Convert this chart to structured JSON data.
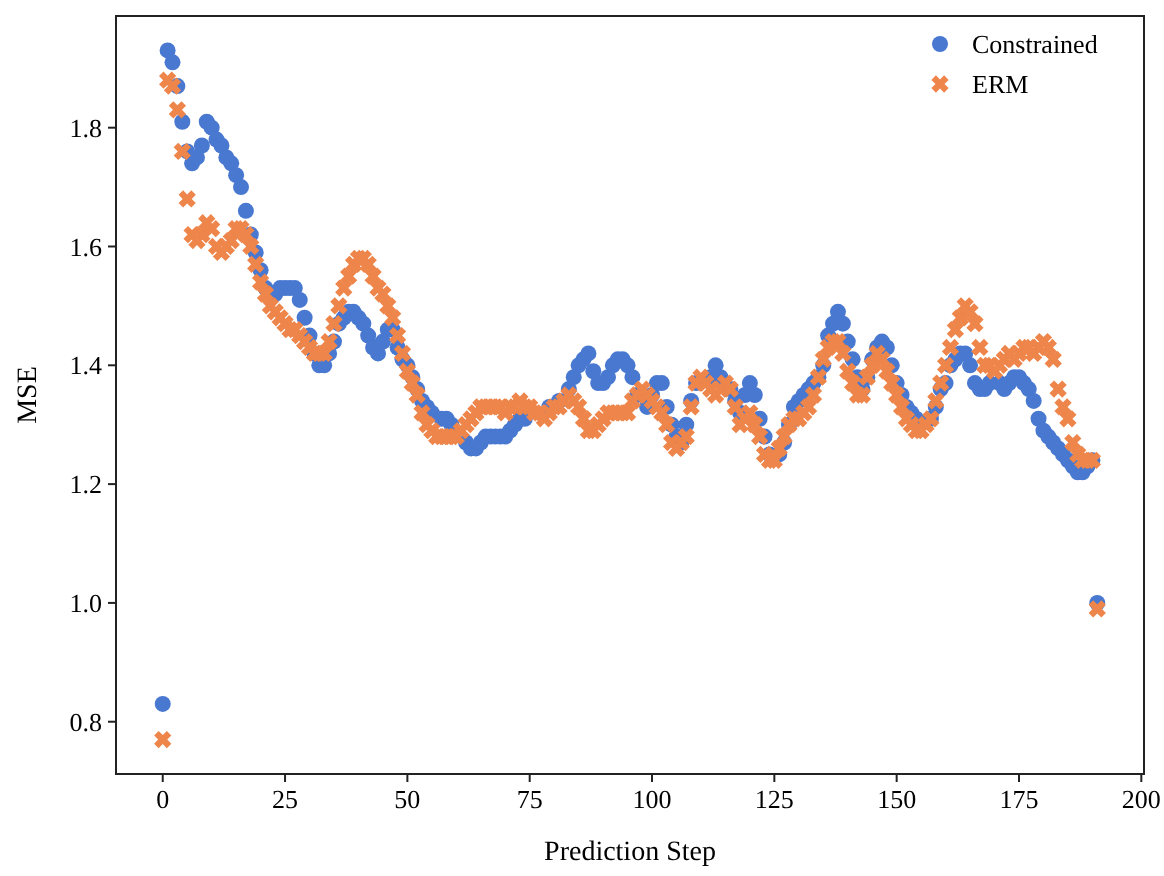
{
  "chart_data": {
    "type": "scatter",
    "xlabel": "Prediction Step",
    "ylabel": "MSE",
    "x": [
      0,
      1,
      2,
      3,
      4,
      5,
      6,
      7,
      8,
      9,
      10,
      11,
      12,
      13,
      14,
      15,
      16,
      17,
      18,
      19,
      20,
      21,
      22,
      23,
      24,
      25,
      26,
      27,
      28,
      29,
      30,
      31,
      32,
      33,
      34,
      35,
      36,
      37,
      38,
      39,
      40,
      41,
      42,
      43,
      44,
      45,
      46,
      47,
      48,
      49,
      50,
      51,
      52,
      53,
      54,
      55,
      56,
      57,
      58,
      59,
      60,
      61,
      62,
      63,
      64,
      65,
      66,
      67,
      68,
      69,
      70,
      71,
      72,
      73,
      74,
      75,
      76,
      77,
      78,
      79,
      80,
      81,
      82,
      83,
      84,
      85,
      86,
      87,
      88,
      89,
      90,
      91,
      92,
      93,
      94,
      95,
      96,
      97,
      98,
      99,
      100,
      101,
      102,
      103,
      104,
      105,
      106,
      107,
      108,
      109,
      110,
      111,
      112,
      113,
      114,
      115,
      116,
      117,
      118,
      119,
      120,
      121,
      122,
      123,
      124,
      125,
      126,
      127,
      128,
      129,
      130,
      131,
      132,
      133,
      134,
      135,
      136,
      137,
      138,
      139,
      140,
      141,
      142,
      143,
      144,
      145,
      146,
      147,
      148,
      149,
      150,
      151,
      152,
      153,
      154,
      155,
      156,
      157,
      158,
      159,
      160,
      161,
      162,
      163,
      164,
      165,
      166,
      167,
      168,
      169,
      170,
      171,
      172,
      173,
      174,
      175,
      176,
      177,
      178,
      179,
      180,
      181,
      182,
      183,
      184,
      185,
      186,
      187,
      188,
      189,
      190,
      191
    ],
    "series": [
      {
        "name": "Constrained",
        "color": "#4878d0",
        "marker": "circle",
        "values": [
          0.83,
          1.93,
          1.91,
          1.87,
          1.81,
          1.76,
          1.74,
          1.75,
          1.77,
          1.81,
          1.8,
          1.78,
          1.77,
          1.75,
          1.74,
          1.72,
          1.7,
          1.66,
          1.62,
          1.59,
          1.56,
          1.53,
          null,
          1.52,
          1.53,
          1.53,
          1.53,
          1.53,
          1.51,
          1.48,
          1.45,
          1.42,
          1.4,
          1.4,
          1.42,
          1.44,
          1.47,
          1.48,
          1.49,
          1.49,
          1.48,
          1.47,
          1.45,
          1.43,
          1.42,
          1.44,
          1.46,
          1.46,
          1.43,
          1.41,
          1.4,
          1.38,
          1.36,
          1.34,
          1.33,
          1.32,
          null,
          1.31,
          1.31,
          1.3,
          null,
          null,
          1.27,
          1.26,
          1.26,
          1.27,
          1.28,
          1.28,
          1.28,
          1.28,
          1.28,
          1.29,
          1.3,
          1.31,
          1.31,
          null,
          null,
          null,
          null,
          1.33,
          null,
          1.34,
          null,
          1.36,
          1.38,
          1.4,
          1.41,
          1.42,
          1.39,
          1.37,
          1.37,
          1.38,
          1.4,
          1.41,
          1.41,
          1.4,
          1.38,
          1.35,
          null,
          1.33,
          1.35,
          1.37,
          1.37,
          1.33,
          1.3,
          1.28,
          1.27,
          1.3,
          1.34,
          1.37,
          null,
          null,
          1.38,
          1.4,
          1.38,
          null,
          1.36,
          1.34,
          1.32,
          1.35,
          1.37,
          1.35,
          1.31,
          1.28,
          1.25,
          null,
          1.25,
          1.27,
          1.3,
          1.33,
          1.34,
          1.35,
          1.36,
          1.37,
          1.38,
          1.4,
          1.45,
          1.47,
          1.49,
          1.47,
          1.44,
          1.41,
          1.38,
          1.36,
          1.38,
          1.41,
          1.43,
          1.44,
          1.43,
          1.4,
          1.37,
          1.35,
          1.33,
          1.32,
          1.31,
          null,
          null,
          1.31,
          1.33,
          1.36,
          1.37,
          1.4,
          1.41,
          1.42,
          1.42,
          1.4,
          1.37,
          1.36,
          1.36,
          1.37,
          null,
          1.37,
          1.36,
          1.37,
          1.38,
          1.38,
          1.37,
          1.36,
          1.34,
          1.31,
          1.29,
          1.28,
          1.27,
          1.26,
          1.25,
          1.24,
          1.23,
          1.22,
          1.22,
          1.23,
          1.24,
          1.0
        ]
      },
      {
        "name": "ERM",
        "color": "#ee854a",
        "marker": "cross",
        "values": [
          0.77,
          1.88,
          1.87,
          1.83,
          1.76,
          1.68,
          1.62,
          1.61,
          1.62,
          1.64,
          1.63,
          1.6,
          1.59,
          1.6,
          1.61,
          1.63,
          1.63,
          1.62,
          1.6,
          1.57,
          1.54,
          1.52,
          1.5,
          1.49,
          1.48,
          1.47,
          1.46,
          1.46,
          1.45,
          1.44,
          1.43,
          1.42,
          1.42,
          1.42,
          1.44,
          1.47,
          1.5,
          1.53,
          1.55,
          1.57,
          1.58,
          1.58,
          1.57,
          1.55,
          1.53,
          1.52,
          1.5,
          1.48,
          1.45,
          1.42,
          1.39,
          1.37,
          1.35,
          1.32,
          1.3,
          1.29,
          1.28,
          1.28,
          1.28,
          1.28,
          1.28,
          1.29,
          1.3,
          1.31,
          1.32,
          1.33,
          1.33,
          1.33,
          1.33,
          1.33,
          1.32,
          1.33,
          1.33,
          1.34,
          1.33,
          1.33,
          1.32,
          1.32,
          1.31,
          1.32,
          1.33,
          1.33,
          1.34,
          1.35,
          1.34,
          1.33,
          1.31,
          1.29,
          1.29,
          1.3,
          1.31,
          1.32,
          1.32,
          1.32,
          1.32,
          1.32,
          1.34,
          1.35,
          1.36,
          1.35,
          1.34,
          1.33,
          1.32,
          1.3,
          1.27,
          1.26,
          1.27,
          1.28,
          1.33,
          1.37,
          1.38,
          1.37,
          1.36,
          1.35,
          1.36,
          1.37,
          1.36,
          1.33,
          1.3,
          1.31,
          1.32,
          1.3,
          1.28,
          1.25,
          1.24,
          1.24,
          1.26,
          1.28,
          1.3,
          1.31,
          1.31,
          1.32,
          1.33,
          1.35,
          1.38,
          1.41,
          1.43,
          1.44,
          1.44,
          1.42,
          1.39,
          1.37,
          1.35,
          1.35,
          1.38,
          1.4,
          1.42,
          1.41,
          1.39,
          1.37,
          1.35,
          1.33,
          1.31,
          1.3,
          1.29,
          1.29,
          1.3,
          1.31,
          1.34,
          1.37,
          1.4,
          1.43,
          1.46,
          1.48,
          1.5,
          1.49,
          1.47,
          1.43,
          1.4,
          1.4,
          1.39,
          1.4,
          1.41,
          1.42,
          1.41,
          1.42,
          1.43,
          1.43,
          1.42,
          1.43,
          1.44,
          1.43,
          1.41,
          1.36,
          1.33,
          1.31,
          1.27,
          1.25,
          1.24,
          1.24,
          1.24,
          0.99
        ]
      }
    ],
    "xlim": [
      -9.55,
      200.55
    ],
    "xticks": [
      0,
      25,
      50,
      75,
      100,
      125,
      150,
      175,
      200
    ],
    "ylim": [
      0.712,
      1.988
    ],
    "yticks": [
      0.8,
      {
        "value": 1,
        "label": "1.0"
      },
      1.2,
      1.4,
      1.6,
      1.8
    ],
    "grid": false,
    "legend": "top right"
  }
}
